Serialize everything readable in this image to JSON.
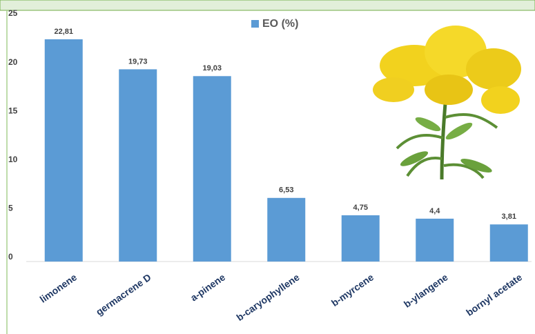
{
  "chart_data": {
    "type": "bar",
    "legend": "EO (%)",
    "categories": [
      "limonene",
      "germacrene D",
      "a-pinene",
      "b-caryophyllene",
      "b-myrcene",
      "b-ylangene",
      "bornyl acetate"
    ],
    "values": [
      22.81,
      19.73,
      19.03,
      6.53,
      4.75,
      4.4,
      3.81
    ],
    "value_labels": [
      "22,81",
      "19,73",
      "19,03",
      "6,53",
      "4,75",
      "4,4",
      "3,81"
    ],
    "color": "#5b9bd5",
    "ylim": [
      0,
      25
    ],
    "yticks": [
      0,
      5,
      10,
      15,
      20,
      25
    ],
    "grid": false
  }
}
